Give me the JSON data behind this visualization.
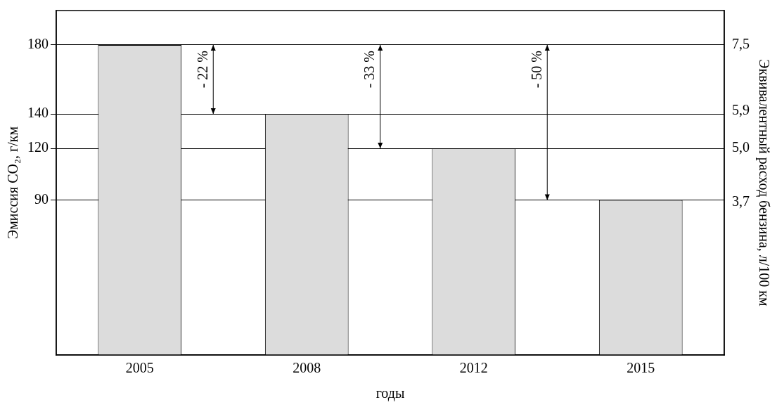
{
  "chart_data": {
    "type": "bar",
    "categories": [
      "2005",
      "2008",
      "2012",
      "2015"
    ],
    "values": [
      180,
      140,
      120,
      90
    ],
    "color": "#dcdcdc",
    "xlabel": "годы",
    "ylabel": "Эмиссия CO₂, г/км",
    "y2label": "Эквивалентный расход бензина, л/100 км",
    "ylim": [
      0,
      200
    ],
    "yticks": [
      90,
      120,
      140,
      180
    ],
    "y2lim": [
      0,
      8.333
    ],
    "y2ticks": [
      {
        "value": 7.5,
        "label": "7,5"
      },
      {
        "value": 5.9,
        "label": "5,9"
      },
      {
        "value": 5.0,
        "label": "5,0"
      },
      {
        "value": 3.7,
        "label": "3,7"
      }
    ],
    "grid": "y",
    "legend": false,
    "annotations": [
      "- 22 %",
      "- 33 %",
      "- 50 %"
    ]
  }
}
